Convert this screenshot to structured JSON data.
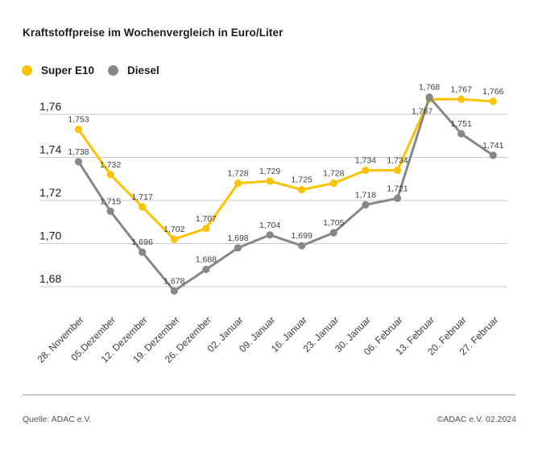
{
  "footer": {
    "source": "Quelle: ADAC e.V.",
    "copyright": "©ADAC e.V. 02.2024"
  },
  "chart_data": {
    "type": "line",
    "title": "Kraftstoffpreise im Wochenvergleich in Euro/Liter",
    "categories": [
      "28. November",
      "05.Dezember",
      "12. Dezember",
      "19. Dezember",
      "26. Dezember",
      "02. Januar",
      "09. Januar",
      "16. Januar",
      "23. Januar",
      "30. Januar",
      "06. Februar",
      "13. Februar",
      "20. Februar",
      "27. Februar"
    ],
    "series": [
      {
        "name": "Super E10",
        "color": "#FDC300",
        "values": [
          1.753,
          1.732,
          1.717,
          1.702,
          1.707,
          1.728,
          1.729,
          1.725,
          1.728,
          1.734,
          1.734,
          1.767,
          1.767,
          1.766
        ]
      },
      {
        "name": "Diesel",
        "color": "#878787",
        "values": [
          1.738,
          1.715,
          1.696,
          1.678,
          1.688,
          1.698,
          1.704,
          1.699,
          1.705,
          1.718,
          1.721,
          1.768,
          1.751,
          1.741
        ]
      }
    ],
    "yticks": [
      1.76,
      1.74,
      1.72,
      1.7,
      1.68
    ],
    "ylim": [
      1.668,
      1.772
    ],
    "xlabel": "",
    "ylabel": "",
    "grid": true,
    "legend_position": "top-left",
    "value_labels": true,
    "decimal_separator": ","
  }
}
